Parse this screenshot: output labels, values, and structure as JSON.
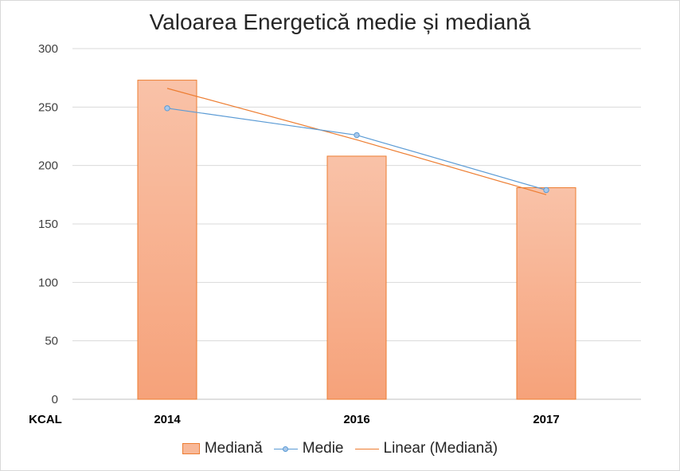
{
  "chart_data": {
    "type": "bar",
    "title": "Valoarea  Energetică medie și mediană",
    "ylabel": "KCAL",
    "categories": [
      "2014",
      "2016",
      "2017"
    ],
    "ylim": [
      0,
      300
    ],
    "yticks": [
      "0",
      "50",
      "100",
      "150",
      "200",
      "250",
      "300"
    ],
    "grid": true,
    "legend_position": "bottom",
    "series": [
      {
        "name": "Mediană",
        "kind": "bar",
        "values": [
          273,
          208,
          181
        ],
        "color": "#f4a582"
      },
      {
        "name": "Medie",
        "kind": "line",
        "values": [
          249,
          226,
          179
        ],
        "color": "#5b9bd5"
      },
      {
        "name": "Linear (Mediană)",
        "kind": "trendline",
        "values": [
          266,
          222,
          175
        ],
        "color": "#ed7d31"
      }
    ]
  }
}
